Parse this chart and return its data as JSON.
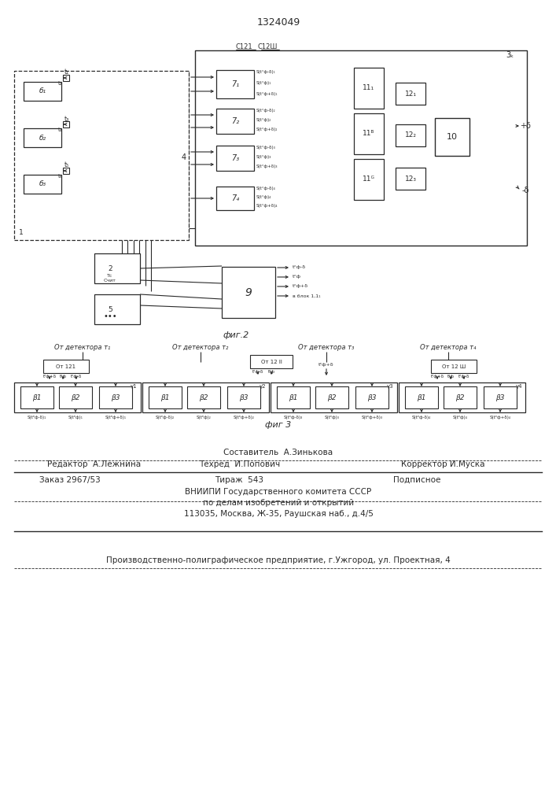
{
  "title": "1324049",
  "fig2_label": "фиг.2",
  "fig3_label": "фиг 3",
  "bg": "#ffffff",
  "lc": "#2a2a2a",
  "footer_composer": "Составитель  А.Зинькова",
  "footer_editor": "Редактор  А.Лежнина",
  "footer_techred": "Техред  И.Попович",
  "footer_corrector": "Корректор И.Муска",
  "footer_order": "Заказ 2967/53",
  "footer_tirazh": "Тираж  543",
  "footer_podpisnoe": "Подписное",
  "footer_vniipи": "ВНИИПИ Государственного комитета СССР",
  "footer_po_delam": "по делам изобретений и открытий",
  "footer_address": "113035, Москва, Ж-35, Раушская наб., д.4/5",
  "footer_production": "Производственно-полиграфическое предприятие, г.Ужгород, ул. Проектная, 4"
}
